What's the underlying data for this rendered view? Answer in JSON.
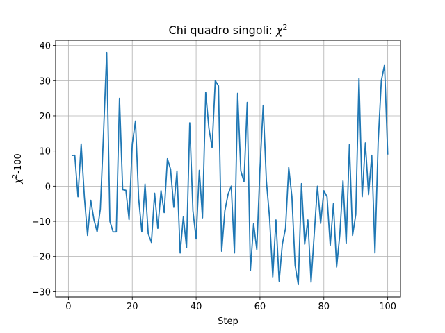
{
  "chart_data": {
    "type": "line",
    "title": "Chi quadro singoli: ",
    "title_symbol": "χ",
    "title_superscript": "2",
    "xlabel": "Step",
    "ylabel_symbol": "χ",
    "ylabel_superscript": "2",
    "ylabel_suffix": "-100",
    "xlim": [
      -4,
      104
    ],
    "ylim": [
      -31.5,
      41.5
    ],
    "x_ticks": [
      0,
      20,
      40,
      60,
      80,
      100
    ],
    "y_ticks": [
      -30,
      -20,
      -10,
      0,
      10,
      20,
      30,
      40
    ],
    "grid": true,
    "line_color": "#1f77b4",
    "series": [
      {
        "x": [
          1,
          2,
          3,
          4,
          5,
          6,
          7,
          8,
          9,
          10,
          11,
          12,
          13,
          14,
          15,
          16,
          17,
          18,
          19,
          20,
          21,
          22,
          23,
          24,
          25,
          26,
          27,
          28,
          29,
          30,
          31,
          32,
          33,
          34,
          35,
          36,
          37,
          38,
          39,
          40,
          41,
          42,
          43,
          44,
          45,
          46,
          47,
          48,
          49,
          50,
          51,
          52,
          53,
          54,
          55,
          56,
          57,
          58,
          59,
          60,
          61,
          62,
          63,
          64,
          65,
          66,
          67,
          68,
          69,
          70,
          71,
          72,
          73,
          74,
          75,
          76,
          77,
          78,
          79,
          80,
          81,
          82,
          83,
          84,
          85,
          86,
          87,
          88,
          89,
          90,
          91,
          92,
          93,
          94,
          95,
          96,
          97,
          98,
          99,
          100
        ],
        "values": [
          8.7,
          8.8,
          -3,
          12,
          -3,
          -14,
          -4,
          -9.5,
          -13,
          -6.5,
          15,
          38,
          -10,
          -13,
          -13,
          25,
          -1,
          -1.2,
          -9.5,
          12,
          18.5,
          -3.5,
          -13,
          0.6,
          -13.5,
          -16,
          -2,
          -12,
          -1.3,
          -7.5,
          7.8,
          4.8,
          -6,
          4.3,
          -19,
          -8.7,
          -17.5,
          18,
          -7,
          -15,
          4.5,
          -9,
          26.7,
          16.5,
          11,
          30,
          28.5,
          -18.5,
          -7,
          -2.3,
          0,
          -19,
          26.4,
          4.3,
          1.3,
          23.8,
          -24,
          -10.7,
          -18,
          5,
          23,
          1.5,
          -9,
          -25.8,
          -9.6,
          -27,
          -16.5,
          -12,
          5.3,
          -3,
          -22.5,
          -28,
          0.7,
          -16.5,
          -9.6,
          -27.3,
          -13.5,
          0,
          -10.6,
          -1.3,
          -3,
          -16.8,
          -5,
          -23,
          -13.8,
          1.5,
          -16.3,
          11.8,
          -14,
          -8,
          30.7,
          -3,
          12.3,
          -2.4,
          8.8,
          -19,
          12.4,
          30,
          34.5,
          9
        ]
      }
    ]
  }
}
